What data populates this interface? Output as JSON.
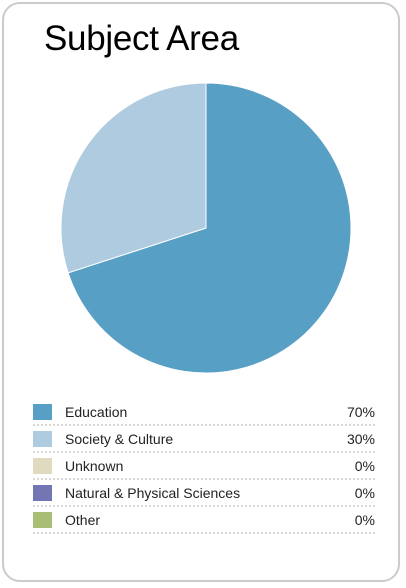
{
  "chart_data": {
    "type": "pie",
    "title": "Subject Area",
    "slices": [
      {
        "label": "Education",
        "value": 70,
        "display": "70%",
        "color": "#579fc5"
      },
      {
        "label": "Society & Culture",
        "value": 30,
        "display": "30%",
        "color": "#aecbdf"
      },
      {
        "label": "Unknown",
        "value": 0,
        "display": "0%",
        "color": "#e0dbc0"
      },
      {
        "label": "Natural & Physical Sciences",
        "value": 0,
        "display": "0%",
        "color": "#7476b4"
      },
      {
        "label": "Other",
        "value": 0,
        "display": "0%",
        "color": "#aabd75"
      }
    ],
    "legend_position": "bottom",
    "start_angle": "12 o'clock",
    "direction": "clockwise"
  }
}
